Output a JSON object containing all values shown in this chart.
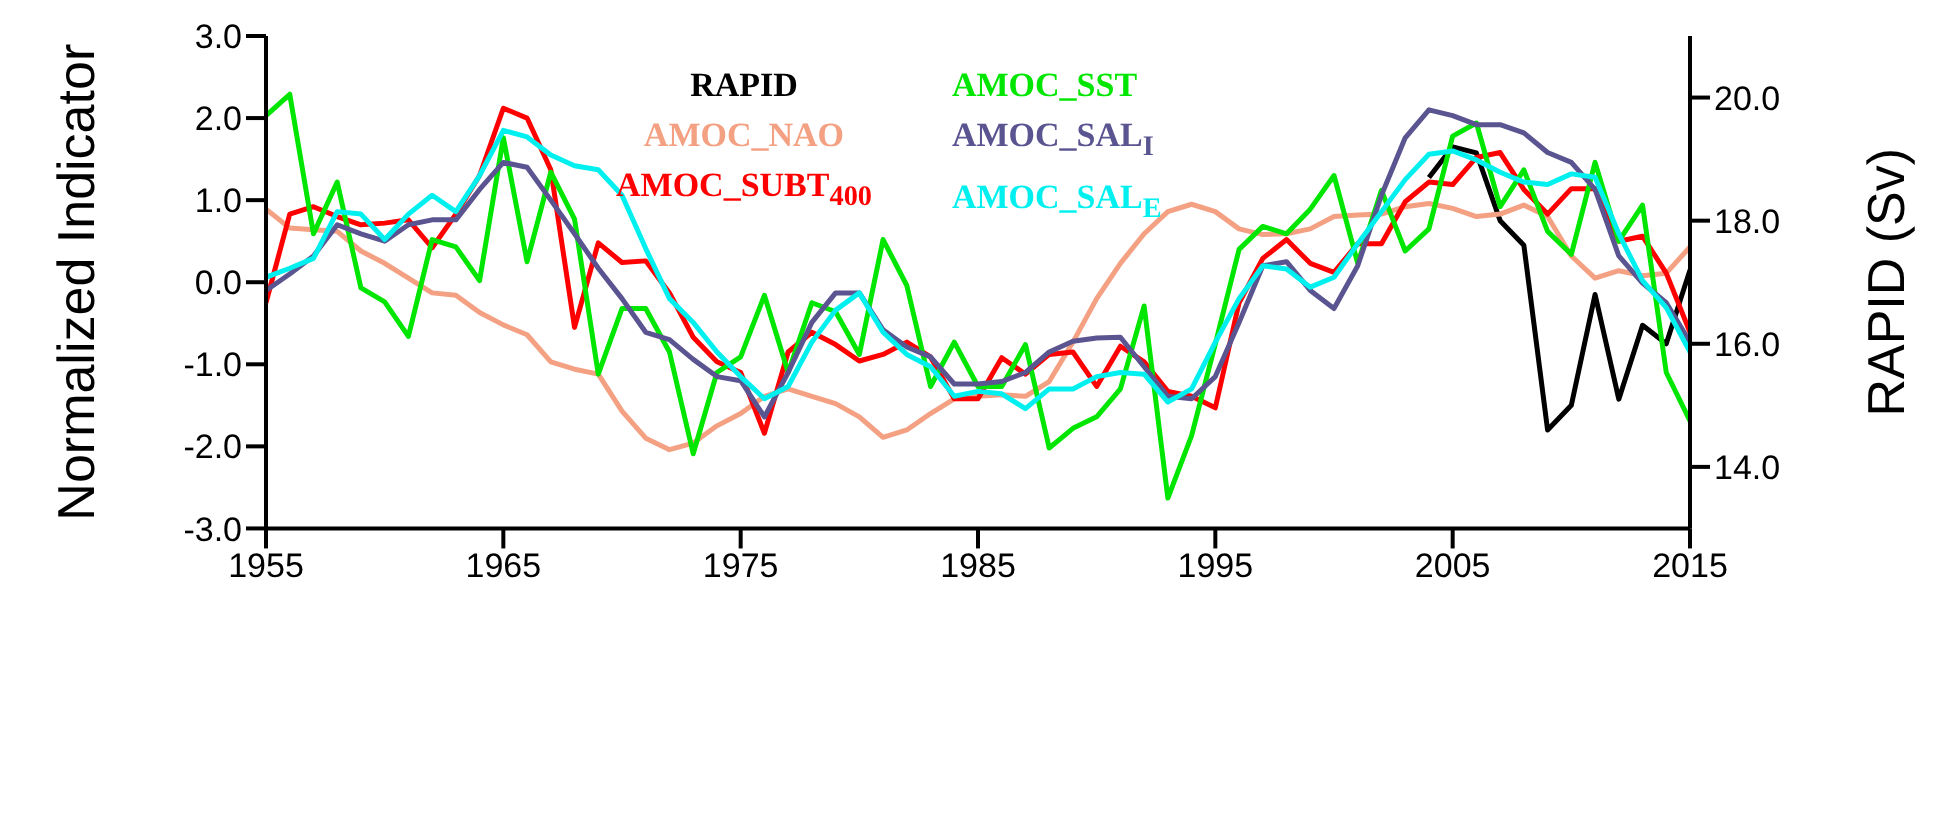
{
  "chart_data": {
    "type": "line",
    "ylabel": "Normalized Indicator",
    "y2label": "RAPID (Sv)",
    "x": [
      1955,
      1956,
      1957,
      1958,
      1959,
      1960,
      1961,
      1962,
      1963,
      1964,
      1965,
      1966,
      1967,
      1968,
      1969,
      1970,
      1971,
      1972,
      1973,
      1974,
      1975,
      1976,
      1977,
      1978,
      1979,
      1980,
      1981,
      1982,
      1983,
      1984,
      1985,
      1986,
      1987,
      1988,
      1989,
      1990,
      1991,
      1992,
      1993,
      1994,
      1995,
      1996,
      1997,
      1998,
      1999,
      2000,
      2001,
      2002,
      2003,
      2004,
      2005,
      2006,
      2007,
      2008,
      2009,
      2010,
      2011,
      2012,
      2013,
      2014,
      2015
    ],
    "xlim": [
      1955,
      2015
    ],
    "xticks": [
      1955,
      1965,
      1975,
      1985,
      1995,
      2005,
      2015
    ],
    "ylim": [
      -3,
      3
    ],
    "yticks": [
      {
        "value": -3,
        "label": "-3.0"
      },
      {
        "value": -2,
        "label": "-2.0"
      },
      {
        "value": -1,
        "label": "-1.0"
      },
      {
        "value": 0,
        "label": "0.0"
      },
      {
        "value": 1,
        "label": "1.0"
      },
      {
        "value": 2,
        "label": "2.0"
      },
      {
        "value": 3,
        "label": "3.0"
      }
    ],
    "y2lim": [
      13,
      21
    ],
    "y2ticks": [
      {
        "value": 14,
        "label": "14.0"
      },
      {
        "value": 16,
        "label": "16.0"
      },
      {
        "value": 18,
        "label": "18.0"
      },
      {
        "value": 20,
        "label": "20.0"
      }
    ],
    "grid": false,
    "legend": "top",
    "marker": "none",
    "line_style": "solid",
    "series": [
      {
        "name": "RAPID",
        "color": "#000000",
        "axis": "y2",
        "x": [
          2004,
          2005,
          2006,
          2007,
          2008,
          2009,
          2010,
          2011,
          2012,
          2013,
          2014,
          2015
        ],
        "values": [
          18.7,
          19.2,
          19.1,
          18.0,
          17.6,
          14.6,
          15.0,
          16.8,
          15.1,
          16.3,
          16.0,
          17.2
        ]
      },
      {
        "name": "AMOC_NAO",
        "color": "#f4a082",
        "values": [
          0.89,
          0.66,
          0.64,
          0.62,
          0.38,
          0.23,
          0.05,
          -0.13,
          -0.16,
          -0.37,
          -0.52,
          -0.64,
          -0.97,
          -1.06,
          -1.12,
          -1.57,
          -1.9,
          -2.04,
          -1.96,
          -1.75,
          -1.6,
          -1.39,
          -1.3,
          -1.39,
          -1.48,
          -1.64,
          -1.89,
          -1.8,
          -1.6,
          -1.42,
          -1.39,
          -1.37,
          -1.39,
          -1.21,
          -0.73,
          -0.2,
          0.23,
          0.59,
          0.86,
          0.95,
          0.86,
          0.65,
          0.58,
          0.59,
          0.65,
          0.8,
          0.82,
          0.83,
          0.92,
          0.96,
          0.9,
          0.8,
          0.83,
          0.94,
          0.8,
          0.32,
          0.05,
          0.14,
          0.08,
          0.11,
          0.43
        ]
      },
      {
        "name": "AMOC_SUBT$_{400}$",
        "color": "#ff0000",
        "values": [
          -0.25,
          0.83,
          0.92,
          0.8,
          0.7,
          0.72,
          0.76,
          0.42,
          0.83,
          1.3,
          2.12,
          2.0,
          1.37,
          -0.55,
          0.48,
          0.24,
          0.26,
          -0.13,
          -0.67,
          -0.97,
          -1.1,
          -1.84,
          -0.85,
          -0.61,
          -0.76,
          -0.96,
          -0.88,
          -0.73,
          -0.91,
          -1.42,
          -1.42,
          -0.92,
          -1.12,
          -0.88,
          -0.85,
          -1.27,
          -0.78,
          -0.97,
          -1.33,
          -1.39,
          -1.53,
          -0.25,
          0.29,
          0.52,
          0.23,
          0.12,
          0.47,
          0.47,
          0.98,
          1.22,
          1.19,
          1.52,
          1.58,
          1.13,
          0.83,
          1.14,
          1.14,
          0.5,
          0.56,
          0.11,
          -0.61
        ]
      },
      {
        "name": "AMOC_SST",
        "color": "#00e600",
        "values": [
          2.03,
          2.29,
          0.59,
          1.22,
          -0.07,
          -0.24,
          -0.66,
          0.52,
          0.43,
          0.02,
          1.76,
          0.25,
          1.34,
          0.77,
          -1.12,
          -0.32,
          -0.32,
          -0.85,
          -2.09,
          -1.1,
          -0.91,
          -0.16,
          -1.1,
          -0.25,
          -0.36,
          -0.88,
          0.52,
          -0.04,
          -1.27,
          -0.73,
          -1.27,
          -1.27,
          -0.76,
          -2.02,
          -1.78,
          -1.64,
          -1.3,
          -0.29,
          -2.63,
          -1.87,
          -0.75,
          0.4,
          0.68,
          0.59,
          0.89,
          1.3,
          0.23,
          1.12,
          0.38,
          0.65,
          1.78,
          1.94,
          0.92,
          1.37,
          0.62,
          0.34,
          1.46,
          0.5,
          0.94,
          -1.1,
          -1.69
        ]
      },
      {
        "name": "AMOC_SAL$_{I}$",
        "color": "#5a5490",
        "values": [
          -0.1,
          0.1,
          0.32,
          0.7,
          0.59,
          0.5,
          0.7,
          0.76,
          0.76,
          1.13,
          1.46,
          1.4,
          1.0,
          0.59,
          0.17,
          -0.2,
          -0.61,
          -0.7,
          -0.94,
          -1.15,
          -1.2,
          -1.64,
          -1.1,
          -0.49,
          -0.13,
          -0.13,
          -0.58,
          -0.79,
          -0.91,
          -1.24,
          -1.24,
          -1.21,
          -1.1,
          -0.85,
          -0.72,
          -0.68,
          -0.67,
          -1.03,
          -1.39,
          -1.42,
          -1.15,
          -0.49,
          0.2,
          0.25,
          -0.1,
          -0.32,
          0.2,
          1.06,
          1.76,
          2.1,
          2.03,
          1.92,
          1.92,
          1.82,
          1.58,
          1.46,
          1.13,
          0.32,
          -0.01,
          -0.25,
          -0.73
        ]
      },
      {
        "name": "AMOC_SAL$_{E}$",
        "color": "#00f0f0",
        "values": [
          0.06,
          0.17,
          0.29,
          0.86,
          0.83,
          0.52,
          0.83,
          1.06,
          0.86,
          1.3,
          1.85,
          1.77,
          1.55,
          1.42,
          1.37,
          1.06,
          0.41,
          -0.2,
          -0.49,
          -0.85,
          -1.15,
          -1.42,
          -1.27,
          -0.73,
          -0.34,
          -0.13,
          -0.61,
          -0.88,
          -1.03,
          -1.39,
          -1.33,
          -1.36,
          -1.54,
          -1.3,
          -1.3,
          -1.15,
          -1.1,
          -1.12,
          -1.46,
          -1.3,
          -0.73,
          -0.2,
          0.2,
          0.16,
          -0.06,
          0.06,
          0.47,
          0.86,
          1.25,
          1.56,
          1.6,
          1.49,
          1.34,
          1.22,
          1.19,
          1.32,
          1.28,
          0.59,
          0.02,
          -0.31,
          -0.85
        ]
      }
    ]
  }
}
